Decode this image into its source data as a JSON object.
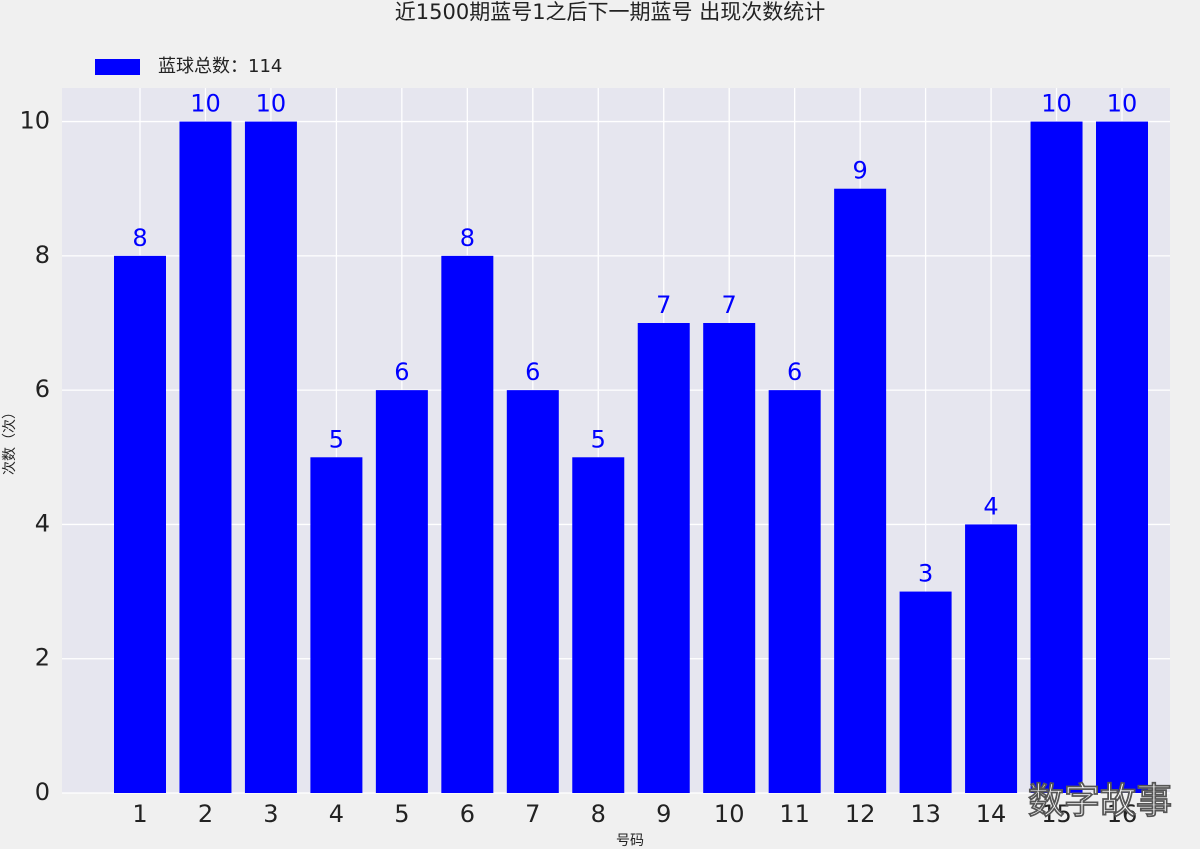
{
  "chart_data": {
    "type": "bar",
    "title": "近1500期蓝号1之后下一期蓝号 出现次数统计",
    "x_label": "号码",
    "y_label": "次数（次）",
    "categories": [
      "1",
      "2",
      "3",
      "4",
      "5",
      "6",
      "7",
      "8",
      "9",
      "10",
      "11",
      "12",
      "13",
      "14",
      "15",
      "16"
    ],
    "series": [
      {
        "name": "蓝球总数：114",
        "color": "#0000ff",
        "values": [
          8,
          10,
          10,
          5,
          6,
          8,
          6,
          5,
          7,
          7,
          6,
          9,
          3,
          4,
          10,
          10
        ]
      }
    ],
    "ylim": [
      0,
      10.5
    ],
    "yticks": [
      0,
      2,
      4,
      6,
      8,
      10
    ],
    "grid": true,
    "legend": "top-left",
    "watermark": "数字故事"
  }
}
